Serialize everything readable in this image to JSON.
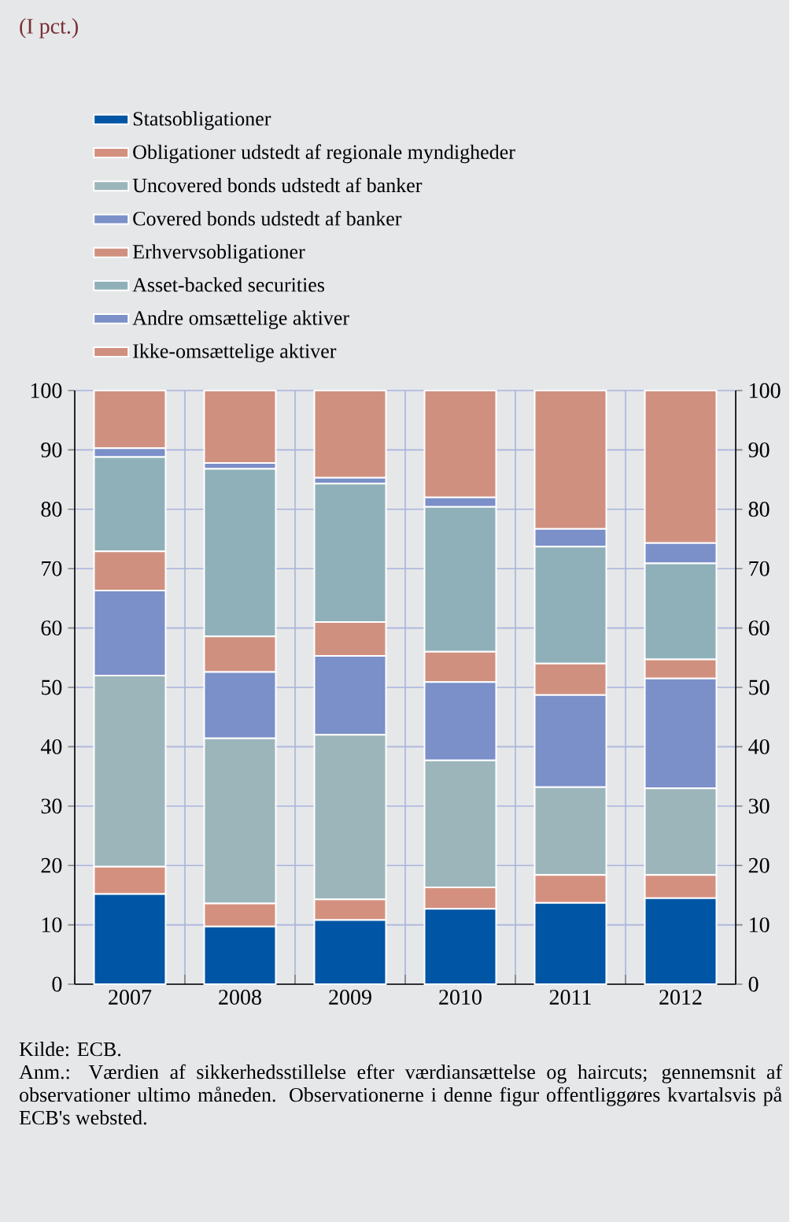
{
  "chart_data": {
    "type": "bar",
    "stacked": true,
    "subtitle": "(I pct.)",
    "categories": [
      "2007",
      "2008",
      "2009",
      "2010",
      "2011",
      "2012"
    ],
    "series": [
      {
        "name": "Statsobligationer",
        "color": "#0055a4",
        "values": [
          15.2,
          9.7,
          10.8,
          12.7,
          13.7,
          14.5
        ]
      },
      {
        "name": "Obligationer udstedt af regionale myndigheder",
        "color": "#d4907f",
        "values": [
          4.6,
          3.9,
          3.5,
          3.6,
          4.7,
          3.9
        ]
      },
      {
        "name": "Uncovered bonds udstedt af banker",
        "color": "#9bb5bb",
        "values": [
          32.2,
          27.8,
          27.7,
          21.4,
          14.8,
          14.6
        ]
      },
      {
        "name": "Covered bonds udstedt af banker",
        "color": "#7b8fc8",
        "values": [
          14.3,
          11.2,
          13.3,
          13.2,
          15.5,
          18.5
        ]
      },
      {
        "name": "Erhvervsobligationer",
        "color": "#d09080",
        "values": [
          6.6,
          6.0,
          5.7,
          5.1,
          5.3,
          3.2
        ]
      },
      {
        "name": "Asset-backed securities",
        "color": "#8fb0b8",
        "values": [
          15.9,
          28.2,
          23.3,
          24.4,
          19.7,
          16.2
        ]
      },
      {
        "name": "Andre omsættelige aktiver",
        "color": "#7b8fc8",
        "values": [
          1.5,
          1.0,
          1.0,
          1.6,
          3.0,
          3.4
        ]
      },
      {
        "name": "Ikke-omsættelige aktiver",
        "color": "#d09080",
        "values": [
          9.7,
          12.2,
          14.7,
          18.0,
          23.3,
          25.7
        ]
      }
    ],
    "ylim": [
      0,
      100
    ],
    "yticks": [
      0,
      10,
      20,
      30,
      40,
      50,
      60,
      70,
      80,
      90,
      100
    ],
    "y2lim": [
      0,
      100
    ],
    "y2ticks": [
      0,
      10,
      20,
      30,
      40,
      50,
      60,
      70,
      80,
      90,
      100
    ],
    "grid": true,
    "legend": "top",
    "annotations": [
      "Kilde: ECB.",
      "Anm.: Værdien af sikkerhedsstillelse efter værdiansættelse og haircuts; gennemsnit af observationer ultimo måneden. Observationerne i denne figur offentliggøres kvartalsvis på ECB's websted."
    ]
  }
}
